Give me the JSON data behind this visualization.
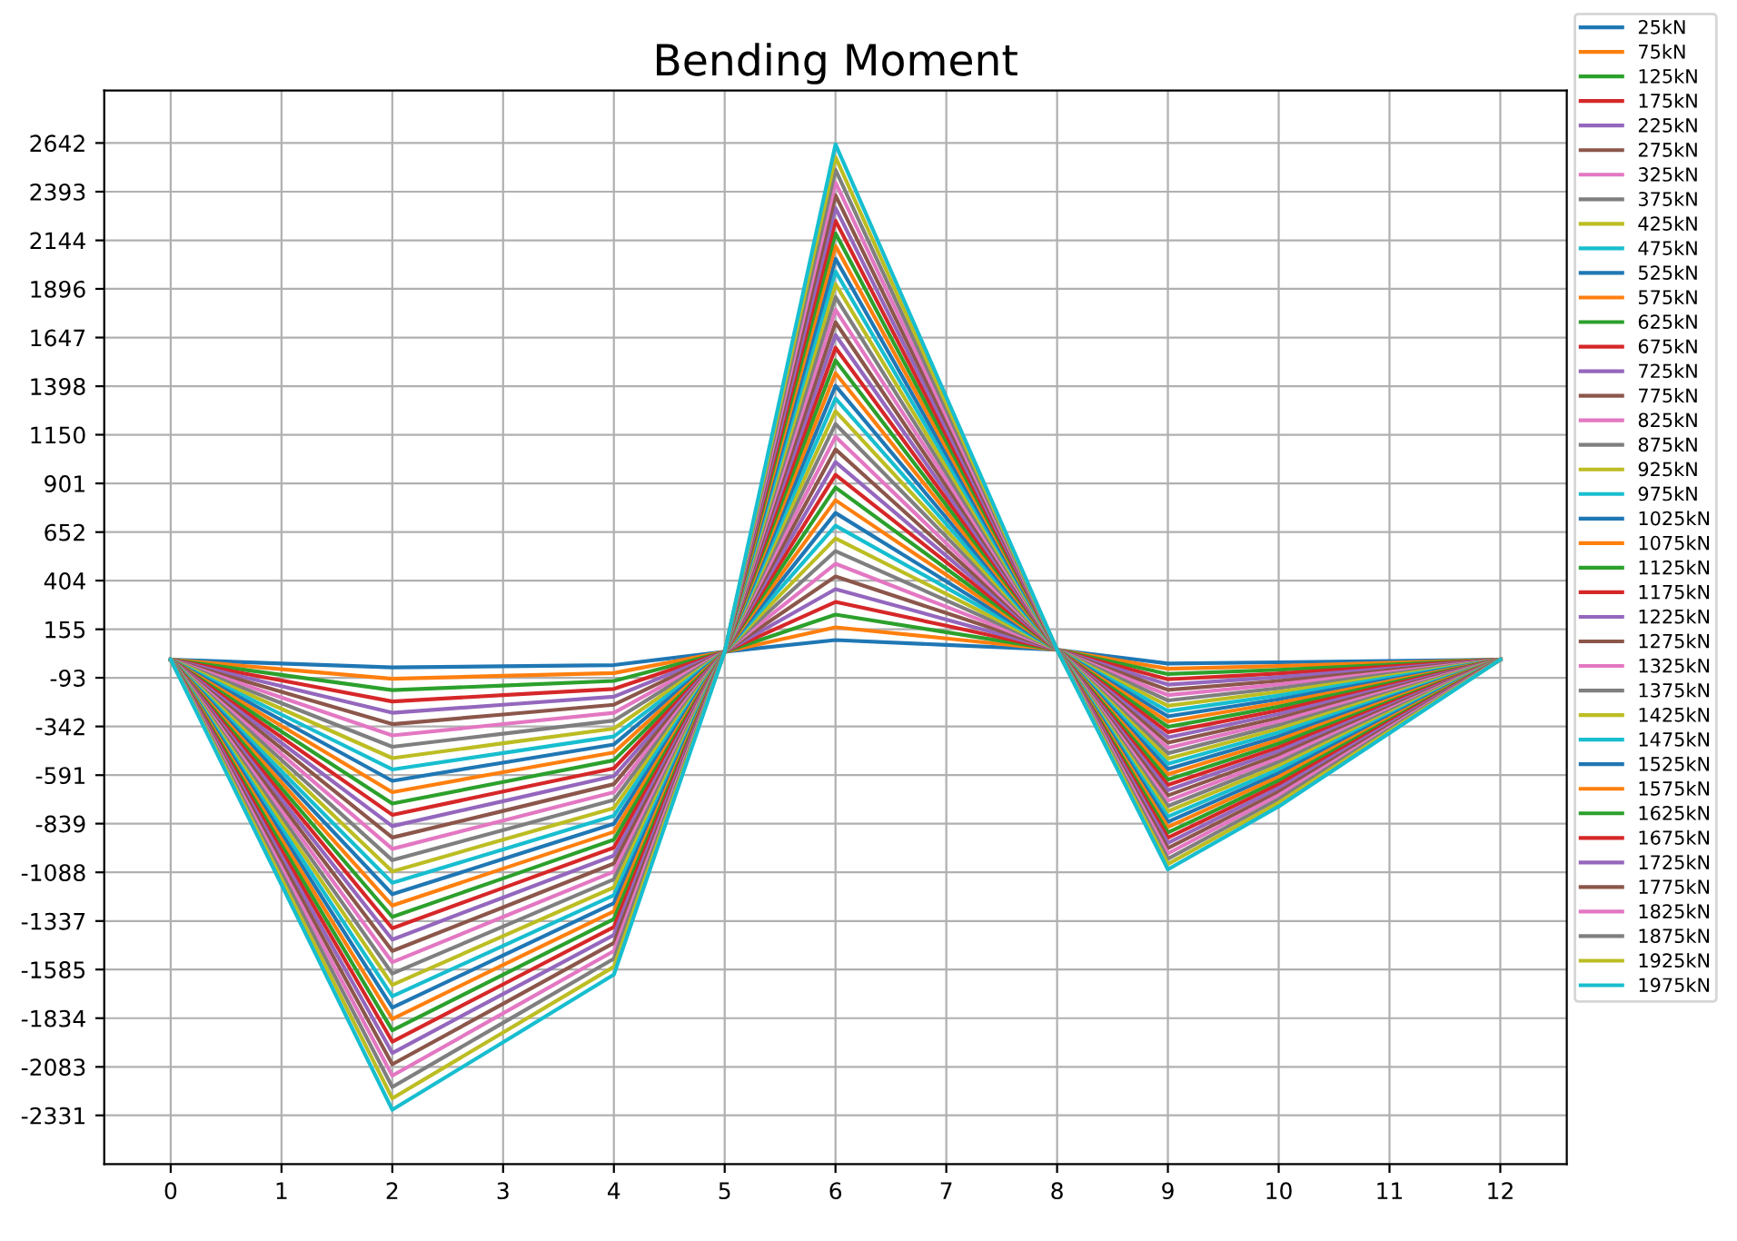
{
  "chart_data": {
    "type": "line",
    "title": "Bending Moment",
    "x": [
      0,
      1,
      2,
      3,
      4,
      5,
      6,
      7,
      8,
      9,
      10,
      11,
      12
    ],
    "xlim": [
      -0.6,
      12.6
    ],
    "xticks": [
      0,
      1,
      2,
      3,
      4,
      5,
      6,
      7,
      8,
      9,
      10,
      11,
      12
    ],
    "ylim": [
      -2580,
      2910
    ],
    "yticks": [
      2642,
      2393,
      2144,
      1896,
      1647,
      1398,
      1150,
      901,
      652,
      404,
      155,
      -93,
      -342,
      -591,
      -839,
      -1088,
      -1337,
      -1585,
      -1834,
      -2083,
      -2331
    ],
    "grid": true,
    "legend": "right",
    "marker": "none",
    "line_style": "solid",
    "series": [
      {
        "name": "25kN",
        "color": "#1f77b4",
        "values": [
          0,
          -20,
          -40,
          -34,
          -28,
          40,
          100,
          75,
          50,
          -20,
          -14,
          -7,
          0
        ]
      },
      {
        "name": "75kN",
        "color": "#ff7f0e",
        "values": [
          0,
          -49,
          -98,
          -83,
          -69,
          40,
          165,
          108,
          50,
          -47,
          -33,
          -16,
          0
        ]
      },
      {
        "name": "125kN",
        "color": "#2ca02c",
        "values": [
          0,
          -78,
          -156,
          -133,
          -109,
          40,
          230,
          140,
          50,
          -74,
          -52,
          -26,
          0
        ]
      },
      {
        "name": "175kN",
        "color": "#d62728",
        "values": [
          0,
          -107,
          -214,
          -182,
          -150,
          40,
          295,
          173,
          50,
          -101,
          -71,
          -35,
          0
        ]
      },
      {
        "name": "225kN",
        "color": "#9467bd",
        "values": [
          0,
          -136,
          -272,
          -231,
          -190,
          40,
          360,
          205,
          50,
          -128,
          -90,
          -45,
          0
        ]
      },
      {
        "name": "275kN",
        "color": "#8c564b",
        "values": [
          0,
          -165,
          -330,
          -281,
          -231,
          40,
          425,
          238,
          50,
          -155,
          -109,
          -54,
          0
        ]
      },
      {
        "name": "325kN",
        "color": "#e377c2",
        "values": [
          0,
          -194,
          -388,
          -330,
          -272,
          40,
          490,
          270,
          50,
          -182,
          -127,
          -64,
          0
        ]
      },
      {
        "name": "375kN",
        "color": "#7f7f7f",
        "values": [
          0,
          -223,
          -446,
          -379,
          -312,
          40,
          555,
          303,
          50,
          -209,
          -146,
          -73,
          0
        ]
      },
      {
        "name": "425kN",
        "color": "#bcbd22",
        "values": [
          0,
          -252,
          -504,
          -428,
          -353,
          40,
          620,
          335,
          50,
          -236,
          -165,
          -83,
          0
        ]
      },
      {
        "name": "475kN",
        "color": "#17becf",
        "values": [
          0,
          -281,
          -562,
          -478,
          -393,
          40,
          685,
          368,
          50,
          -263,
          -184,
          -92,
          0
        ]
      },
      {
        "name": "525kN",
        "color": "#1f77b4",
        "values": [
          0,
          -310,
          -620,
          -527,
          -434,
          40,
          750,
          400,
          50,
          -290,
          -203,
          -102,
          0
        ]
      },
      {
        "name": "575kN",
        "color": "#ff7f0e",
        "values": [
          0,
          -339,
          -678,
          -576,
          -475,
          40,
          815,
          433,
          50,
          -317,
          -222,
          -111,
          0
        ]
      },
      {
        "name": "625kN",
        "color": "#2ca02c",
        "values": [
          0,
          -368,
          -736,
          -626,
          -515,
          40,
          880,
          465,
          50,
          -344,
          -241,
          -120,
          0
        ]
      },
      {
        "name": "675kN",
        "color": "#d62728",
        "values": [
          0,
          -397,
          -794,
          -675,
          -556,
          40,
          945,
          498,
          50,
          -371,
          -260,
          -130,
          0
        ]
      },
      {
        "name": "725kN",
        "color": "#9467bd",
        "values": [
          0,
          -426,
          -852,
          -724,
          -596,
          40,
          1010,
          530,
          50,
          -398,
          -279,
          -139,
          0
        ]
      },
      {
        "name": "775kN",
        "color": "#8c564b",
        "values": [
          0,
          -455,
          -910,
          -774,
          -637,
          40,
          1075,
          563,
          50,
          -425,
          -298,
          -149,
          0
        ]
      },
      {
        "name": "825kN",
        "color": "#e377c2",
        "values": [
          0,
          -484,
          -968,
          -823,
          -678,
          40,
          1140,
          595,
          50,
          -452,
          -316,
          -158,
          0
        ]
      },
      {
        "name": "875kN",
        "color": "#7f7f7f",
        "values": [
          0,
          -513,
          -1026,
          -872,
          -718,
          40,
          1205,
          628,
          50,
          -479,
          -335,
          -168,
          0
        ]
      },
      {
        "name": "925kN",
        "color": "#bcbd22",
        "values": [
          0,
          -542,
          -1084,
          -921,
          -759,
          40,
          1270,
          660,
          50,
          -506,
          -354,
          -177,
          0
        ]
      },
      {
        "name": "975kN",
        "color": "#17becf",
        "values": [
          0,
          -571,
          -1142,
          -971,
          -799,
          40,
          1335,
          693,
          50,
          -533,
          -373,
          -187,
          0
        ]
      },
      {
        "name": "1025kN",
        "color": "#1f77b4",
        "values": [
          0,
          -600,
          -1200,
          -1020,
          -840,
          40,
          1400,
          725,
          50,
          -560,
          -392,
          -196,
          0
        ]
      },
      {
        "name": "1075kN",
        "color": "#ff7f0e",
        "values": [
          0,
          -629,
          -1258,
          -1069,
          -881,
          40,
          1465,
          758,
          50,
          -587,
          -411,
          -205,
          0
        ]
      },
      {
        "name": "1125kN",
        "color": "#2ca02c",
        "values": [
          0,
          -658,
          -1316,
          -1119,
          -921,
          40,
          1530,
          790,
          50,
          -614,
          -430,
          -215,
          0
        ]
      },
      {
        "name": "1175kN",
        "color": "#d62728",
        "values": [
          0,
          -687,
          -1374,
          -1168,
          -962,
          40,
          1595,
          823,
          50,
          -641,
          -449,
          -224,
          0
        ]
      },
      {
        "name": "1225kN",
        "color": "#9467bd",
        "values": [
          0,
          -716,
          -1432,
          -1217,
          -1002,
          40,
          1660,
          855,
          50,
          -668,
          -468,
          -234,
          0
        ]
      },
      {
        "name": "1275kN",
        "color": "#8c564b",
        "values": [
          0,
          -745,
          -1490,
          -1267,
          -1043,
          40,
          1725,
          888,
          50,
          -695,
          -487,
          -243,
          0
        ]
      },
      {
        "name": "1325kN",
        "color": "#e377c2",
        "values": [
          0,
          -774,
          -1548,
          -1316,
          -1084,
          40,
          1790,
          920,
          50,
          -722,
          -505,
          -253,
          0
        ]
      },
      {
        "name": "1375kN",
        "color": "#7f7f7f",
        "values": [
          0,
          -803,
          -1606,
          -1365,
          -1124,
          40,
          1855,
          953,
          50,
          -749,
          -524,
          -262,
          0
        ]
      },
      {
        "name": "1425kN",
        "color": "#bcbd22",
        "values": [
          0,
          -832,
          -1664,
          -1414,
          -1165,
          40,
          1920,
          985,
          50,
          -776,
          -543,
          -272,
          0
        ]
      },
      {
        "name": "1475kN",
        "color": "#17becf",
        "values": [
          0,
          -861,
          -1722,
          -1464,
          -1205,
          40,
          1985,
          1018,
          50,
          -803,
          -562,
          -281,
          0
        ]
      },
      {
        "name": "1525kN",
        "color": "#1f77b4",
        "values": [
          0,
          -890,
          -1780,
          -1513,
          -1246,
          40,
          2050,
          1050,
          50,
          -830,
          -581,
          -291,
          0
        ]
      },
      {
        "name": "1575kN",
        "color": "#ff7f0e",
        "values": [
          0,
          -919,
          -1838,
          -1562,
          -1287,
          40,
          2115,
          1083,
          50,
          -857,
          -600,
          -300,
          0
        ]
      },
      {
        "name": "1625kN",
        "color": "#2ca02c",
        "values": [
          0,
          -948,
          -1896,
          -1612,
          -1327,
          40,
          2180,
          1115,
          50,
          -884,
          -619,
          -309,
          0
        ]
      },
      {
        "name": "1675kN",
        "color": "#d62728",
        "values": [
          0,
          -977,
          -1954,
          -1661,
          -1368,
          40,
          2245,
          1148,
          50,
          -911,
          -638,
          -319,
          0
        ]
      },
      {
        "name": "1725kN",
        "color": "#9467bd",
        "values": [
          0,
          -1006,
          -2012,
          -1710,
          -1408,
          40,
          2310,
          1180,
          50,
          -938,
          -657,
          -328,
          0
        ]
      },
      {
        "name": "1775kN",
        "color": "#8c564b",
        "values": [
          0,
          -1035,
          -2070,
          -1760,
          -1449,
          40,
          2375,
          1213,
          50,
          -965,
          -676,
          -338,
          0
        ]
      },
      {
        "name": "1825kN",
        "color": "#e377c2",
        "values": [
          0,
          -1064,
          -2128,
          -1809,
          -1490,
          40,
          2440,
          1245,
          50,
          -992,
          -694,
          -347,
          0
        ]
      },
      {
        "name": "1875kN",
        "color": "#7f7f7f",
        "values": [
          0,
          -1093,
          -2186,
          -1858,
          -1530,
          40,
          2505,
          1278,
          50,
          -1019,
          -713,
          -357,
          0
        ]
      },
      {
        "name": "1925kN",
        "color": "#bcbd22",
        "values": [
          0,
          -1122,
          -2244,
          -1907,
          -1571,
          40,
          2570,
          1310,
          50,
          -1046,
          -732,
          -366,
          0
        ]
      },
      {
        "name": "1975kN",
        "color": "#17becf",
        "values": [
          0,
          -1151,
          -2302,
          -1957,
          -1611,
          40,
          2635,
          1343,
          50,
          -1073,
          -751,
          -376,
          0
        ]
      }
    ]
  }
}
